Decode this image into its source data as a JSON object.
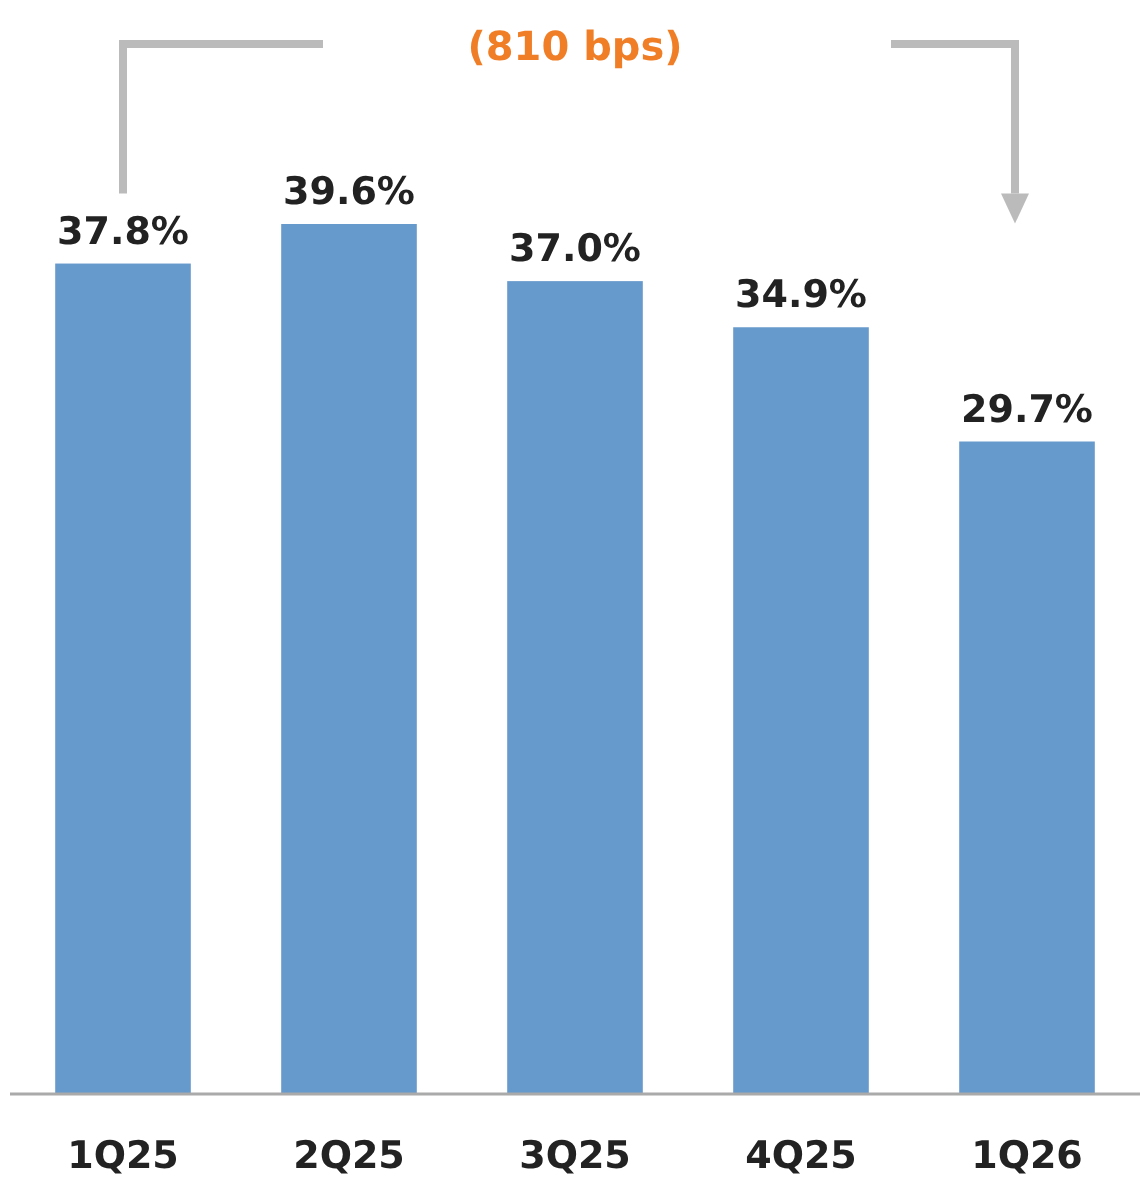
{
  "chart_data": {
    "type": "bar",
    "categories": [
      "1Q25",
      "2Q25",
      "3Q25",
      "4Q25",
      "1Q26"
    ],
    "values": [
      37.8,
      39.6,
      37.0,
      34.9,
      29.7
    ],
    "value_labels": [
      "37.8%",
      "39.6%",
      "37.0%",
      "34.9%",
      "29.7%"
    ],
    "color": "#6699cc",
    "annotations": [
      "(810 bps)"
    ]
  }
}
